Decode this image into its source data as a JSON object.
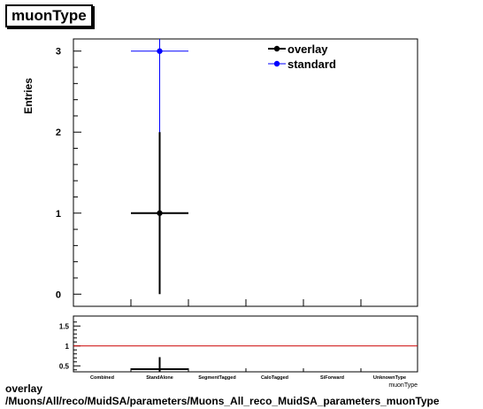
{
  "title": "muonType",
  "chart_data": [
    {
      "type": "scatter",
      "panel": "main",
      "ylabel": "Entries",
      "xlabel": "muonType",
      "categories": [
        "Combined",
        "StandAlone",
        "SegmentTagged",
        "CaloTagged",
        "SiForward",
        "UnknownType"
      ],
      "y_ticks": [
        "0",
        "1",
        "2",
        "3"
      ],
      "ylim": [
        -0.15,
        3.15
      ],
      "series": [
        {
          "name": "overlay",
          "color": "#000000",
          "points": [
            {
              "x": "StandAlone",
              "y": 1,
              "yerr": 1
            }
          ]
        },
        {
          "name": "standard",
          "color": "#0000ff",
          "points": [
            {
              "x": "StandAlone",
              "y": 3,
              "yerr": 1.732
            }
          ]
        }
      ],
      "legend_position": "top-right"
    },
    {
      "type": "scatter",
      "panel": "ratio",
      "y_ticks": [
        "0.5",
        "1",
        "1.5"
      ],
      "ylim": [
        0.35,
        1.75
      ],
      "reference_line": {
        "y": 1,
        "color": "#cc0000"
      },
      "series": [
        {
          "color": "#000000",
          "points": [
            {
              "x": "StandAlone",
              "y": 0.3333,
              "yerr": 0.385
            }
          ]
        }
      ]
    }
  ],
  "footer": {
    "line1": "overlay",
    "line2": "/Muons/All/reco/MuidSA/parameters/Muons_All_reco_MuidSA_parameters_muonType"
  }
}
